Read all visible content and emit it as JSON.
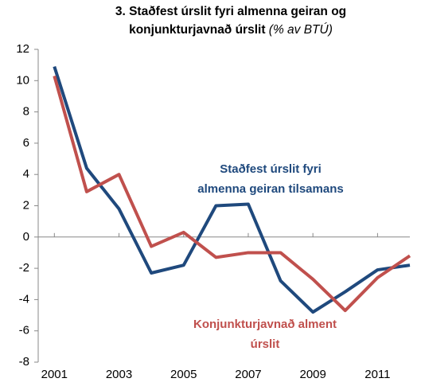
{
  "chart_data": {
    "type": "line",
    "title_lines": [
      "3. Staðfest úrslit fyri almenna geiran og",
      "konjunkturjavnað úrslit"
    ],
    "subtitle": "(% av BTÚ)",
    "x": [
      2001,
      2002,
      2003,
      2004,
      2005,
      2006,
      2007,
      2008,
      2009,
      2010,
      2011,
      2012
    ],
    "series": [
      {
        "name": "Staðfest úrslit fyri almenna geiran tilsamans",
        "color": "#1f497d",
        "label_lines": [
          "Staðfest úrslit fyri",
          "almenna geiran tilsamans"
        ],
        "values": [
          10.9,
          4.4,
          1.8,
          -2.3,
          -1.8,
          2.0,
          2.1,
          -2.8,
          -4.8,
          -3.5,
          -2.1,
          -1.8
        ]
      },
      {
        "name": "Konjunkturjavnað alment úrslit",
        "color": "#c0504d",
        "label_lines": [
          "Konjunkturjavnað alment",
          "úrslit"
        ],
        "values": [
          10.3,
          2.9,
          4.0,
          -0.6,
          0.3,
          -1.3,
          -1.0,
          -1.0,
          -2.7,
          -4.7,
          -2.6,
          -1.2
        ]
      }
    ],
    "xlim": [
      2000.5,
      2012
    ],
    "xticks": [
      2001,
      2003,
      2005,
      2007,
      2009,
      2011
    ],
    "ylim": [
      -8,
      12
    ],
    "yticks": [
      -8,
      -6,
      -4,
      -2,
      0,
      2,
      4,
      6,
      8,
      10,
      12
    ]
  }
}
